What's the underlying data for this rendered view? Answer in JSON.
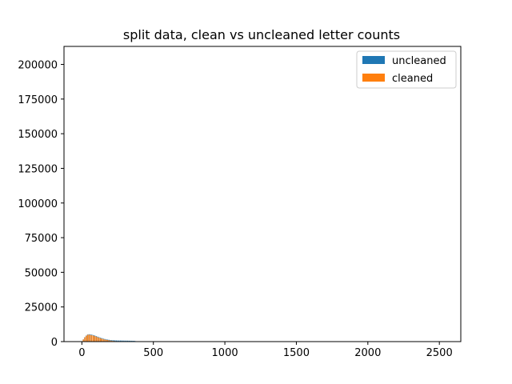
{
  "chart_data": {
    "type": "bar",
    "title": "split data, clean vs uncleaned letter counts",
    "xlabel": "",
    "ylabel": "",
    "xlim": [
      -125,
      2650
    ],
    "ylim": [
      0,
      213000
    ],
    "x_ticks": [
      0,
      500,
      1000,
      1500,
      2000,
      2500
    ],
    "y_ticks": [
      0,
      25000,
      50000,
      75000,
      100000,
      125000,
      150000,
      175000,
      200000
    ],
    "grid": false,
    "legend_position": "top-right",
    "series": [
      {
        "name": "uncleaned",
        "color": "#1f77b4",
        "x": [
          10,
          20,
          30,
          40,
          50,
          60,
          70,
          80,
          90,
          100,
          110,
          120,
          130,
          140,
          150,
          160,
          170,
          180,
          190,
          200,
          210,
          220,
          230,
          240,
          250,
          260,
          270,
          280,
          290,
          300,
          310,
          320,
          330,
          340,
          350,
          360,
          370,
          380
        ],
        "values": [
          1600,
          3200,
          4300,
          5100,
          5300,
          5200,
          5000,
          4700,
          4400,
          4000,
          3600,
          3200,
          2800,
          2500,
          2200,
          1900,
          1650,
          1450,
          1300,
          1150,
          1050,
          950,
          900,
          850,
          800,
          780,
          760,
          740,
          720,
          700,
          680,
          660,
          640,
          620,
          600,
          560,
          500,
          300
        ]
      },
      {
        "name": "cleaned",
        "color": "#ff7f0e",
        "x": [
          10,
          20,
          30,
          40,
          50,
          60,
          70,
          80,
          90,
          100,
          110,
          120,
          130,
          140,
          150,
          160,
          170,
          180,
          190,
          200,
          210,
          220,
          230,
          240,
          250,
          260,
          270,
          280
        ],
        "values": [
          1500,
          3000,
          4100,
          4900,
          5000,
          4800,
          4600,
          4300,
          4000,
          3600,
          3200,
          2800,
          2400,
          2100,
          1800,
          1500,
          1300,
          1100,
          900,
          750,
          600,
          480,
          380,
          300,
          230,
          180,
          130,
          90
        ]
      }
    ]
  }
}
